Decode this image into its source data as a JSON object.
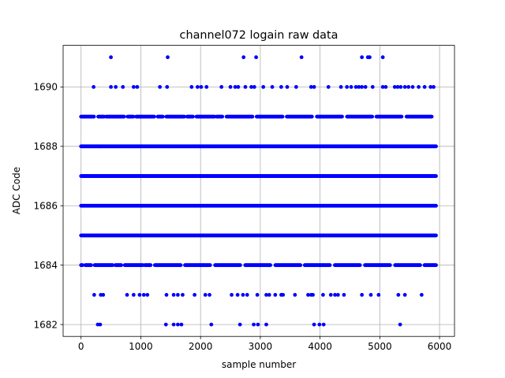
{
  "chart_data": {
    "type": "scatter",
    "title": "channel072 logain raw data",
    "xlabel": "sample number",
    "ylabel": "ADC Code",
    "xlim": [
      -300,
      6250
    ],
    "ylim": [
      1681.6,
      1691.4
    ],
    "xticks": [
      0,
      1000,
      2000,
      3000,
      4000,
      5000,
      6000
    ],
    "yticks": [
      1682,
      1684,
      1686,
      1688,
      1690
    ],
    "grid": true,
    "marker_color": "#0000ff",
    "n_samples": 5940,
    "dense_levels": [
      1684,
      1685,
      1686,
      1687,
      1688,
      1689
    ],
    "sparse_points": [
      {
        "y": 1691,
        "x": [
          500,
          1450,
          2720,
          2930,
          3690,
          4700,
          4800,
          4830,
          5050
        ]
      },
      {
        "y": 1690,
        "x": [
          210,
          500,
          580,
          700,
          880,
          940,
          1320,
          1440,
          1850,
          1950,
          2010,
          2100,
          2350,
          2500,
          2580,
          2630,
          2750,
          2850,
          2900,
          3050,
          3200,
          3350,
          3450,
          3600,
          3850,
          3900,
          4140,
          4350,
          4450,
          4520,
          4600,
          4650,
          4700,
          4760,
          4880,
          5050,
          5100,
          5250,
          5300,
          5350,
          5420,
          5480,
          5550,
          5650,
          5750,
          5850,
          5900
        ]
      },
      {
        "y": 1683,
        "x": [
          220,
          330,
          370,
          770,
          880,
          980,
          1050,
          1110,
          1430,
          1550,
          1620,
          1700,
          1900,
          2080,
          2150,
          2520,
          2620,
          2710,
          2780,
          2950,
          3100,
          3150,
          3250,
          3350,
          3380,
          3580,
          3800,
          3850,
          3880,
          4050,
          4180,
          4250,
          4300,
          4400,
          4700,
          4850,
          4980,
          5310,
          5420,
          5700
        ]
      },
      {
        "y": 1682,
        "x": [
          280,
          320,
          1420,
          1550,
          1620,
          1680,
          2180,
          2660,
          2890,
          2960,
          3100,
          3900,
          3990,
          4060,
          5340
        ]
      }
    ]
  }
}
